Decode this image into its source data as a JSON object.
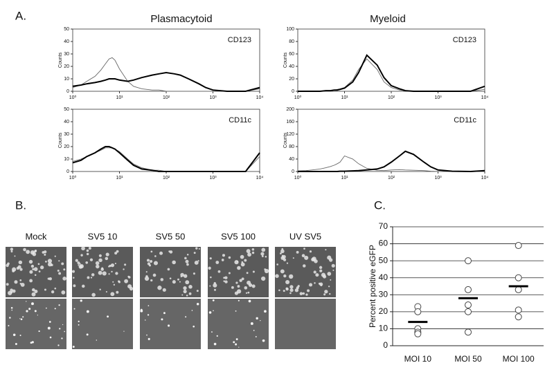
{
  "panels": {
    "a": "A.",
    "b": "B.",
    "c": "C."
  },
  "column_titles": [
    "Plasmacytoid",
    "Myeloid"
  ],
  "image_labels": [
    "Mock",
    "SV5 10",
    "SV5 50",
    "SV5 100",
    "UV SV5"
  ],
  "chart_data": [
    {
      "type": "line",
      "annotation": "CD123",
      "ylabel": "Counts",
      "log_x": true,
      "x": [
        1,
        1.5,
        2,
        3,
        4,
        5,
        6,
        7,
        8,
        10,
        15,
        20,
        30,
        50,
        70,
        100,
        150,
        200,
        300,
        500,
        700,
        1000,
        2000,
        5000,
        10000
      ],
      "xlim": [
        1,
        10000
      ],
      "xticks": [
        {
          "value": 1,
          "label": "10⁰"
        },
        {
          "value": 10,
          "label": "10¹"
        },
        {
          "value": 100,
          "label": "10²"
        },
        {
          "value": 1000,
          "label": "10³"
        },
        {
          "value": 10000,
          "label": "10⁴"
        }
      ],
      "ylim": [
        0,
        50
      ],
      "yticks": [
        0,
        10,
        20,
        30,
        40,
        50
      ],
      "series": [
        {
          "color": "#666666",
          "values": [
            3,
            5,
            8,
            12,
            17,
            22,
            26,
            27,
            25,
            18,
            8,
            4,
            2,
            1,
            1,
            0,
            0,
            0,
            0,
            0,
            0,
            0,
            0,
            0,
            2
          ]
        },
        {
          "color": "#000000",
          "values": [
            4,
            5,
            6,
            7,
            8,
            9,
            10,
            10,
            10,
            9,
            8,
            9,
            11,
            13,
            14,
            15,
            14,
            13,
            10,
            6,
            3,
            1,
            0,
            0,
            3
          ]
        }
      ]
    },
    {
      "type": "line",
      "annotation": "CD11c",
      "ylabel": "Counts",
      "log_x": true,
      "x": [
        1,
        1.5,
        2,
        3,
        4,
        5,
        6,
        7,
        8,
        10,
        15,
        20,
        30,
        50,
        70,
        100,
        150,
        200,
        300,
        500,
        700,
        1000,
        2000,
        5000,
        10000
      ],
      "xlim": [
        1,
        10000
      ],
      "xticks": [
        {
          "value": 1,
          "label": "10⁰"
        },
        {
          "value": 10,
          "label": "10¹"
        },
        {
          "value": 100,
          "label": "10²"
        },
        {
          "value": 1000,
          "label": "10³"
        },
        {
          "value": 10000,
          "label": "10⁴"
        }
      ],
      "ylim": [
        0,
        50
      ],
      "yticks": [
        0,
        10,
        20,
        30,
        40,
        50
      ],
      "series": [
        {
          "color": "#666666",
          "values": [
            8,
            10,
            12,
            15,
            17,
            19,
            19,
            19,
            18,
            16,
            10,
            6,
            3,
            1,
            1,
            0,
            0,
            0,
            0,
            0,
            0,
            0,
            0,
            0,
            12
          ]
        },
        {
          "color": "#000000",
          "values": [
            7,
            9,
            12,
            15,
            18,
            20,
            20,
            19,
            18,
            15,
            9,
            5,
            2,
            1,
            0,
            0,
            0,
            0,
            0,
            0,
            0,
            0,
            0,
            0,
            15
          ]
        }
      ]
    },
    {
      "type": "line",
      "annotation": "CD123",
      "ylabel": "Counts",
      "log_x": true,
      "x": [
        1,
        1.5,
        2,
        3,
        4,
        5,
        6,
        7,
        8,
        10,
        15,
        20,
        30,
        50,
        70,
        100,
        150,
        200,
        300,
        500,
        700,
        1000,
        2000,
        5000,
        10000
      ],
      "xlim": [
        1,
        10000
      ],
      "xticks": [
        {
          "value": 1,
          "label": "10⁰"
        },
        {
          "value": 10,
          "label": "10¹"
        },
        {
          "value": 100,
          "label": "10²"
        },
        {
          "value": 1000,
          "label": "10³"
        },
        {
          "value": 10000,
          "label": "10⁴"
        }
      ],
      "ylim": [
        0,
        100
      ],
      "yticks": [
        0,
        20,
        40,
        60,
        80,
        100
      ],
      "series": [
        {
          "color": "#666666",
          "values": [
            0,
            0,
            0,
            0,
            1,
            1,
            2,
            3,
            4,
            6,
            18,
            35,
            52,
            35,
            15,
            6,
            2,
            1,
            0,
            0,
            0,
            0,
            0,
            0,
            3
          ]
        },
        {
          "color": "#000000",
          "values": [
            0,
            0,
            0,
            0,
            1,
            1,
            2,
            2,
            3,
            5,
            15,
            30,
            58,
            42,
            22,
            9,
            4,
            1,
            0,
            0,
            0,
            0,
            0,
            0,
            8
          ]
        }
      ]
    },
    {
      "type": "line",
      "annotation": "CD11c",
      "ylabel": "Counts",
      "log_x": true,
      "x": [
        1,
        1.5,
        2,
        3,
        4,
        5,
        6,
        7,
        8,
        10,
        15,
        20,
        30,
        50,
        70,
        100,
        150,
        200,
        300,
        500,
        700,
        1000,
        2000,
        5000,
        10000
      ],
      "xlim": [
        1,
        10000
      ],
      "xticks": [
        {
          "value": 1,
          "label": "10⁰"
        },
        {
          "value": 10,
          "label": "10¹"
        },
        {
          "value": 100,
          "label": "10²"
        },
        {
          "value": 1000,
          "label": "10³"
        },
        {
          "value": 10000,
          "label": "10⁴"
        }
      ],
      "ylim": [
        0,
        200
      ],
      "yticks": [
        0,
        40,
        80,
        120,
        160,
        200
      ],
      "series": [
        {
          "color": "#666666",
          "values": [
            2,
            3,
            5,
            8,
            12,
            16,
            20,
            25,
            30,
            50,
            40,
            25,
            10,
            4,
            3,
            5,
            6,
            5,
            4,
            3,
            1,
            0,
            0,
            0,
            0
          ]
        },
        {
          "color": "#000000",
          "values": [
            0,
            0,
            0,
            0,
            0,
            0,
            0,
            0,
            1,
            1,
            2,
            3,
            5,
            8,
            15,
            30,
            50,
            65,
            55,
            30,
            15,
            5,
            1,
            0,
            3
          ]
        }
      ]
    },
    {
      "type": "dot",
      "ylabel": "Percent positive eGFP",
      "categories": [
        "MOI 10",
        "MOI 50",
        "MOI 100"
      ],
      "points": [
        [
          23,
          20,
          10,
          8,
          7
        ],
        [
          50,
          33,
          24,
          20,
          8
        ],
        [
          59,
          40,
          33,
          21,
          17
        ]
      ],
      "means": [
        14,
        28,
        35
      ],
      "ylim": [
        0,
        70
      ],
      "yticks": [
        0,
        10,
        20,
        30,
        40,
        50,
        60,
        70
      ],
      "grid": true
    }
  ]
}
